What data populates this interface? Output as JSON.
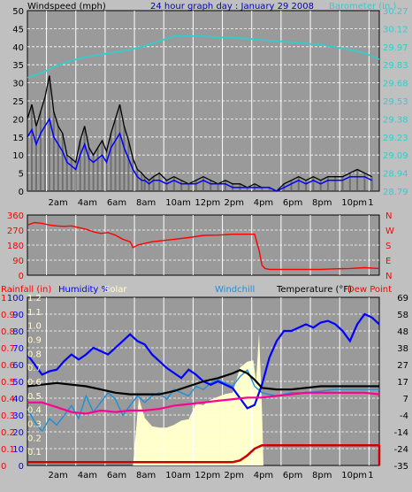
{
  "header": {
    "title": "24 hour graph day : January 29 2008",
    "left_label": "Windspeed (mph)",
    "right_label": "Barometer (in.)"
  },
  "colors": {
    "background": "#c0c0c0",
    "plot": "#9a9a9a",
    "grid": "#ffffff",
    "wind_gust": "#000000",
    "wind_avg": "#0000ff",
    "wind_low": "#555555",
    "barometer": "#33cccc",
    "direction": "#ff0000",
    "humidity": "#0000ff",
    "solar": "#ffffcc",
    "rain": "#cc0000",
    "windchill": "#1f8fd6",
    "temperature": "#000000",
    "dewpoint": "#ff0090",
    "title": "#0000cc"
  },
  "chart_data": [
    {
      "type": "line",
      "name": "wind-barometer",
      "x_ticks": [
        "2am",
        "4am",
        "6am",
        "8am",
        "10am",
        "12pm",
        "2pm",
        "4pm",
        "6pm",
        "8pm",
        "10pm",
        "1"
      ],
      "ylim": [
        0,
        50
      ],
      "yticks_left": [
        "50",
        "45",
        "40",
        "35",
        "30",
        "25",
        "20",
        "15",
        "10",
        "5",
        "0"
      ],
      "yticks_right": [
        "30.27",
        "30.12",
        "29.97",
        "29.83",
        "29.68",
        "29.53",
        "29.38",
        "29.23",
        "29.09",
        "28.94",
        "28.79"
      ],
      "series": [
        {
          "key": "gust",
          "x": [
            0,
            0.3,
            0.6,
            0.9,
            1.2,
            1.5,
            1.8,
            2.1,
            2.4,
            2.7,
            3.0,
            3.3,
            3.6,
            3.9,
            4.2,
            4.5,
            4.8,
            5.1,
            5.4,
            5.7,
            6.0,
            6.3,
            6.6,
            6.9,
            7.2,
            7.5,
            7.8,
            8.0,
            8.3,
            8.6,
            9.0,
            9.5,
            10,
            10.5,
            11,
            11.5,
            12,
            12.5,
            13,
            13.5,
            14,
            14.5,
            15,
            15.5,
            16,
            16.5,
            17,
            17.5,
            18,
            18.5,
            19,
            19.5,
            20,
            20.5,
            21,
            21.5,
            22,
            22.5,
            23,
            23.5
          ],
          "values": [
            20,
            24,
            18,
            22,
            26,
            32,
            22,
            18,
            16,
            10,
            9,
            8,
            14,
            18,
            12,
            10,
            12,
            14,
            11,
            16,
            20,
            24,
            18,
            14,
            9,
            6,
            5,
            4,
            3,
            4,
            5,
            3,
            4,
            3,
            2,
            3,
            4,
            3,
            2,
            3,
            2,
            2,
            1,
            2,
            1,
            1,
            0,
            2,
            3,
            4,
            3,
            4,
            3,
            4,
            4,
            4,
            5,
            6,
            5,
            4
          ]
        },
        {
          "key": "average",
          "x": [
            0,
            0.3,
            0.6,
            0.9,
            1.2,
            1.5,
            1.8,
            2.1,
            2.4,
            2.7,
            3.0,
            3.3,
            3.6,
            3.9,
            4.2,
            4.5,
            4.8,
            5.1,
            5.4,
            5.7,
            6.0,
            6.3,
            6.6,
            6.9,
            7.2,
            7.5,
            7.8,
            8.0,
            8.3,
            8.6,
            9.0,
            9.5,
            10,
            10.5,
            11,
            11.5,
            12,
            12.5,
            13,
            13.5,
            14,
            14.5,
            15,
            15.5,
            16,
            16.5,
            17,
            17.5,
            18,
            18.5,
            19,
            19.5,
            20,
            20.5,
            21,
            21.5,
            22,
            22.5,
            23,
            23.5
          ],
          "values": [
            15,
            17,
            13,
            16,
            18,
            20,
            15,
            13,
            11,
            8,
            7,
            6,
            10,
            13,
            9,
            8,
            9,
            10,
            8,
            12,
            14,
            16,
            12,
            9,
            6,
            4,
            3,
            3,
            2,
            3,
            3,
            2,
            3,
            2,
            2,
            2,
            3,
            2,
            2,
            2,
            1,
            1,
            1,
            1,
            1,
            1,
            0,
            1,
            2,
            3,
            2,
            3,
            2,
            3,
            3,
            3,
            4,
            4,
            4,
            3
          ]
        },
        {
          "key": "barometer",
          "x": [
            0,
            1,
            2,
            3,
            4,
            5,
            6,
            7,
            8,
            9,
            10,
            11,
            12,
            13,
            14,
            15,
            16,
            17,
            18,
            19,
            20,
            21,
            22,
            23,
            24
          ],
          "values": [
            29.72,
            29.76,
            29.82,
            29.86,
            29.89,
            29.91,
            29.93,
            29.95,
            29.98,
            30.02,
            30.06,
            30.06,
            30.06,
            30.05,
            30.05,
            30.04,
            30.03,
            30.02,
            30.01,
            30.0,
            29.99,
            29.97,
            29.95,
            29.92,
            29.87
          ]
        }
      ]
    },
    {
      "type": "line",
      "name": "wind-direction",
      "ylim": [
        0,
        360
      ],
      "yticks_left": [
        "360",
        "270",
        "180",
        "90",
        "0"
      ],
      "yticks_right": [
        "N",
        "W",
        "S",
        "E",
        "N"
      ],
      "series": [
        {
          "key": "direction",
          "x": [
            0,
            0.5,
            1,
            1.5,
            2,
            2.5,
            3,
            3.5,
            4,
            4.5,
            5,
            5.5,
            6,
            6.5,
            7,
            7.2,
            7.5,
            8,
            8.5,
            9,
            10,
            11,
            12,
            13,
            14,
            15,
            15.5,
            15.8,
            16,
            16.2,
            16.5,
            17,
            18,
            19,
            20,
            21,
            22,
            23,
            24
          ],
          "values": [
            300,
            315,
            310,
            300,
            295,
            292,
            295,
            285,
            275,
            260,
            250,
            255,
            240,
            215,
            200,
            165,
            180,
            190,
            200,
            205,
            215,
            225,
            238,
            240,
            245,
            245,
            245,
            150,
            60,
            40,
            35,
            35,
            35,
            35,
            35,
            38,
            40,
            45,
            40
          ]
        }
      ]
    },
    {
      "type": "line",
      "name": "temperature-humidity",
      "yticks_rain": [
        "1",
        "0.9",
        "0.8",
        "0.7",
        "0.6",
        "0.5",
        "0.4",
        "0.3",
        "0.2",
        "0.1",
        "0"
      ],
      "yticks_solar": [
        "1.2",
        "1.1",
        "1.0",
        "0.9",
        "0.8",
        "0.7",
        "0.6",
        "0.5",
        "0.4",
        "0.3",
        "0.2",
        "0.1"
      ],
      "yticks_humidity": [
        "100",
        "90",
        "80",
        "70",
        "60",
        "50",
        "40",
        "30",
        "20",
        "10",
        "0"
      ],
      "yticks_right": [
        "69",
        "58",
        "48",
        "38",
        "27",
        "17",
        "7",
        "-4",
        "-14",
        "-24",
        "-35"
      ],
      "legend": [
        "Rainfall (in)",
        "Humidity %",
        "Solar",
        "Windchill",
        "Temperature (°F)",
        "Dew Point"
      ],
      "series": [
        {
          "key": "humidity",
          "ylim": [
            0,
            100
          ],
          "x": [
            0,
            0.5,
            1,
            1.5,
            2,
            2.5,
            3,
            3.5,
            4,
            4.5,
            5,
            5.5,
            6,
            6.5,
            7,
            7.5,
            8,
            8.5,
            9,
            9.5,
            10,
            10.5,
            11,
            11.5,
            12,
            12.5,
            13,
            13.5,
            14,
            14.5,
            15,
            15.5,
            16,
            16.5,
            17,
            17.5,
            18,
            18.5,
            19,
            19.5,
            20,
            20.5,
            21,
            21.5,
            22,
            22.5,
            23,
            23.5,
            24
          ],
          "values": [
            66,
            60,
            54,
            56,
            57,
            62,
            66,
            63,
            66,
            70,
            68,
            66,
            70,
            74,
            78,
            74,
            72,
            66,
            62,
            58,
            55,
            52,
            57,
            54,
            50,
            48,
            50,
            48,
            46,
            40,
            34,
            36,
            48,
            64,
            74,
            80,
            80,
            82,
            84,
            82,
            85,
            86,
            84,
            80,
            74,
            84,
            90,
            88,
            84
          ]
        },
        {
          "key": "temperature",
          "ylim": [
            -35,
            69
          ],
          "x": [
            0,
            1,
            2,
            3,
            4,
            5,
            6,
            7,
            8,
            9,
            10,
            11,
            12,
            13,
            14,
            14.5,
            15,
            15.5,
            16,
            17,
            18,
            19,
            20,
            21,
            22,
            23,
            24
          ],
          "values": [
            14,
            15,
            16,
            15,
            14,
            12,
            10,
            9,
            9,
            9,
            11,
            14,
            17,
            19,
            22,
            24,
            22,
            18,
            13,
            12,
            12,
            13,
            14,
            14,
            14,
            14,
            14
          ]
        },
        {
          "key": "windchill",
          "ylim": [
            -35,
            69
          ],
          "x": [
            0,
            0.5,
            1,
            1.5,
            2,
            2.5,
            3,
            3.5,
            4,
            4.5,
            5,
            5.5,
            6,
            6.5,
            7,
            7.5,
            8,
            8.5,
            9,
            9.5,
            10,
            10.5,
            11,
            11.5,
            12,
            12.5,
            13,
            13.5,
            14,
            14.5,
            15,
            15.5,
            16,
            17,
            18,
            19,
            20,
            21,
            22,
            23,
            24
          ],
          "values": [
            0,
            -8,
            -14,
            -6,
            -10,
            -4,
            2,
            -6,
            8,
            -2,
            4,
            10,
            6,
            -4,
            2,
            8,
            4,
            8,
            10,
            6,
            12,
            10,
            8,
            14,
            12,
            16,
            18,
            16,
            14,
            20,
            24,
            14,
            10,
            8,
            10,
            10,
            11,
            12,
            12,
            12,
            12
          ]
        },
        {
          "key": "dewpoint",
          "ylim": [
            -35,
            69
          ],
          "x": [
            0,
            1,
            2,
            3,
            4,
            5,
            6,
            7,
            8,
            9,
            10,
            11,
            12,
            13,
            14,
            15,
            16,
            17,
            18,
            19,
            20,
            21,
            22,
            23,
            24
          ],
          "values": [
            4,
            4,
            1,
            -2,
            -3,
            -1,
            -2,
            -1,
            -1,
            0,
            2,
            3,
            4,
            5,
            6,
            7,
            7,
            8,
            9,
            10,
            10,
            10,
            10,
            10,
            9
          ]
        },
        {
          "key": "solar",
          "ylim": [
            0,
            1.2
          ],
          "x": [
            0,
            7.2,
            7.3,
            7.6,
            8,
            8.5,
            9,
            9.5,
            10,
            10.5,
            11,
            11.5,
            12,
            12.5,
            13,
            13.5,
            14,
            14.5,
            15,
            15.4,
            15.6,
            15.8,
            16,
            16.1,
            24
          ],
          "values": [
            0,
            0,
            0.12,
            0.48,
            0.34,
            0.28,
            0.27,
            0.27,
            0.29,
            0.32,
            0.33,
            0.44,
            0.43,
            0.47,
            0.49,
            0.51,
            0.52,
            0.7,
            0.74,
            0.75,
            0.6,
            0.95,
            0.4,
            0,
            0
          ]
        },
        {
          "key": "rain",
          "ylim": [
            0,
            1
          ],
          "x": [
            0,
            14,
            14.5,
            15,
            15.5,
            16,
            24
          ],
          "values": [
            0.02,
            0.02,
            0.03,
            0.06,
            0.1,
            0.12,
            0.12
          ]
        }
      ]
    }
  ]
}
